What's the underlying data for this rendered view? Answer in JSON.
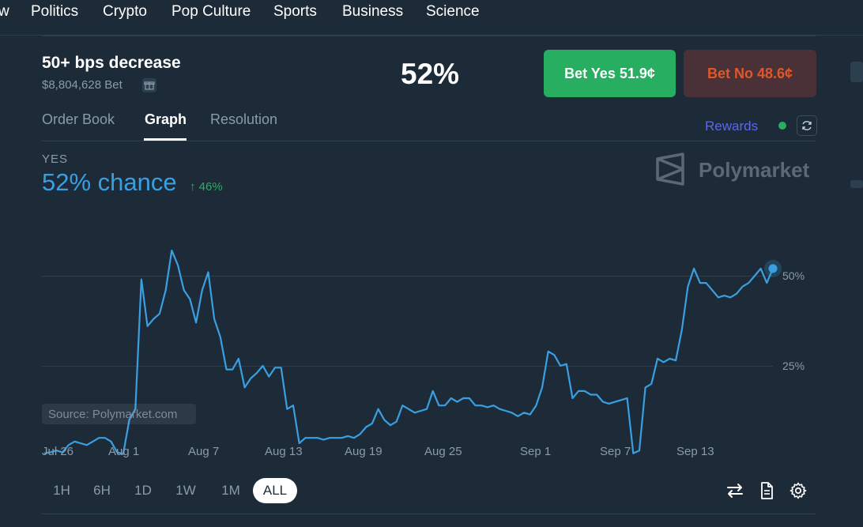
{
  "nav": [
    "w",
    "Politics",
    "Crypto",
    "Pop Culture",
    "Sports",
    "Business",
    "Science"
  ],
  "market": {
    "title": "50+ bps decrease",
    "volume": "$8,804,628 Bet",
    "probability": "52%"
  },
  "actions": {
    "bet_yes": "Bet Yes 51.9¢",
    "bet_no": "Bet No 48.6¢"
  },
  "tabs": {
    "order_book": "Order Book",
    "graph": "Graph",
    "resolution": "Resolution"
  },
  "rewards": "Rewards",
  "outcome": {
    "label": "YES",
    "chance": "52% chance",
    "change": "↑ 46%"
  },
  "watermark": "Polymarket",
  "source": "Source: Polymarket.com",
  "ranges": [
    "1H",
    "6H",
    "1D",
    "1W",
    "1M",
    "ALL"
  ],
  "active_range": "ALL",
  "colors": {
    "background": "#1d2b39",
    "accent": "#3a9fe0",
    "yes": "#27ae60",
    "no_text": "#e0582a"
  },
  "chart_data": {
    "type": "line",
    "series": [
      {
        "values": [
          0.7,
          1.0,
          1.5,
          1.0,
          3.0,
          4.0,
          3.5,
          3.0,
          4.0,
          5.0,
          5.0,
          4.0,
          1.0,
          0.5,
          10.0,
          13.0,
          49.0,
          36.0,
          38.0,
          39.5,
          46.0,
          57.0,
          53.0,
          46.0,
          43.5,
          37.0,
          46.0,
          51.0,
          38.0,
          33.0,
          24.0,
          24.0,
          27.0,
          19.0,
          21.5,
          23.0,
          25.0,
          22.0,
          24.5,
          24.5,
          13.0,
          14.0,
          3.5,
          5.0,
          5.0,
          5.0,
          4.5,
          5.0,
          5.0,
          5.0,
          5.5,
          5.0,
          6.0,
          8.0,
          9.0,
          13.0,
          10.0,
          8.5,
          9.5,
          14.0,
          13.0,
          12.0,
          12.5,
          13.0,
          18.0,
          14.0,
          14.0,
          16.0,
          15.0,
          16.0,
          16.0,
          14.0,
          14.0,
          13.5,
          14.0,
          13.0,
          12.5,
          12.0,
          11.0,
          12.0,
          11.5,
          14.0,
          19.0,
          29.0,
          28.0,
          25.0,
          25.5,
          16.0,
          18.0,
          18.0,
          17.0,
          17.0,
          15.0,
          14.5,
          15.0,
          15.5,
          16.0,
          0.7,
          1.5,
          19.0,
          20.0,
          27.0,
          26.0,
          27.0,
          26.5,
          35.0,
          47.0,
          52.0,
          48.0,
          48.0,
          46.0,
          44.0,
          44.5,
          44.0,
          45.0,
          47.0,
          48.0,
          50.0,
          52.0,
          48.0,
          52.0
        ]
      }
    ],
    "x_ticks": [
      "Jul 26",
      "Aug 1",
      "Aug 7",
      "Aug 13",
      "Aug 19",
      "Aug 25",
      "Sep 1",
      "Sep 7",
      "Sep 13"
    ],
    "y_ticks": [
      "25%",
      "50%"
    ],
    "ylim": [
      0,
      65
    ],
    "grid": true
  }
}
